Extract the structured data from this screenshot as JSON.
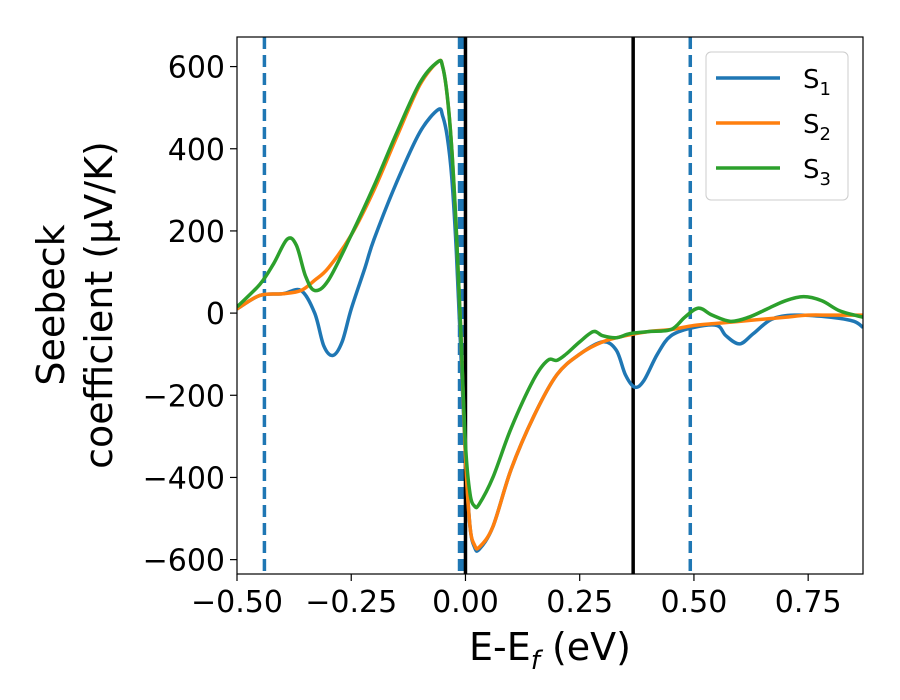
{
  "chart_data": {
    "type": "line",
    "title": "",
    "xlabel": "E-E",
    "xlabel_sub": "f",
    "xlabel_unit": " (eV)",
    "ylabel_line1": "Seebeck",
    "ylabel_line2": "coefficient  (μV/K)",
    "xlim": [
      -0.5,
      0.87
    ],
    "ylim": [
      -635,
      672
    ],
    "xticks": [
      -0.5,
      -0.25,
      0.0,
      0.25,
      0.5,
      0.75
    ],
    "xtick_labels": [
      "−0.50",
      "−0.25",
      "0.00",
      "0.25",
      "0.50",
      "0.75"
    ],
    "yticks": [
      -600,
      -400,
      -200,
      0,
      200,
      400,
      600
    ],
    "ytick_labels": [
      "−600",
      "−400",
      "−200",
      "0",
      "200",
      "400",
      "600"
    ],
    "grid": false,
    "legend_position": "top-right",
    "series": [
      {
        "name": "S",
        "sub": "1",
        "color": "#1f77b4",
        "x": [
          -0.5,
          -0.45,
          -0.4,
          -0.36,
          -0.33,
          -0.31,
          -0.29,
          -0.27,
          -0.25,
          -0.22,
          -0.2,
          -0.15,
          -0.1,
          -0.06,
          -0.05,
          -0.04,
          -0.03,
          -0.02,
          -0.01,
          0.0,
          0.01,
          0.02,
          0.03,
          0.06,
          0.1,
          0.15,
          0.2,
          0.25,
          0.3,
          0.33,
          0.35,
          0.37,
          0.39,
          0.42,
          0.45,
          0.5,
          0.55,
          0.57,
          0.6,
          0.63,
          0.67,
          0.72,
          0.8,
          0.85,
          0.87
        ],
        "y": [
          10,
          43,
          47,
          55,
          0,
          -80,
          -103,
          -70,
          10,
          110,
          180,
          320,
          440,
          495,
          480,
          430,
          330,
          150,
          -100,
          -350,
          -520,
          -570,
          -575,
          -520,
          -380,
          -250,
          -150,
          -100,
          -70,
          -90,
          -150,
          -180,
          -165,
          -100,
          -55,
          -35,
          -30,
          -55,
          -75,
          -50,
          -15,
          -5,
          -10,
          -20,
          -35
        ]
      },
      {
        "name": "S",
        "sub": "2",
        "color": "#ff7f0e",
        "x": [
          -0.5,
          -0.45,
          -0.4,
          -0.36,
          -0.33,
          -0.3,
          -0.25,
          -0.2,
          -0.15,
          -0.1,
          -0.06,
          -0.05,
          -0.04,
          -0.03,
          -0.02,
          -0.01,
          0.0,
          0.01,
          0.02,
          0.03,
          0.06,
          0.1,
          0.15,
          0.2,
          0.25,
          0.3,
          0.35,
          0.4,
          0.45,
          0.5,
          0.55,
          0.6,
          0.65,
          0.7,
          0.75,
          0.8,
          0.87
        ],
        "y": [
          10,
          43,
          47,
          55,
          80,
          110,
          190,
          300,
          430,
          555,
          612,
          600,
          530,
          400,
          200,
          -50,
          -350,
          -520,
          -565,
          -570,
          -520,
          -380,
          -250,
          -150,
          -100,
          -70,
          -55,
          -45,
          -40,
          -30,
          -25,
          -20,
          -15,
          -10,
          -5,
          -5,
          -5
        ]
      },
      {
        "name": "S",
        "sub": "3",
        "color": "#2ca02c",
        "x": [
          -0.5,
          -0.45,
          -0.42,
          -0.39,
          -0.37,
          -0.35,
          -0.33,
          -0.3,
          -0.25,
          -0.2,
          -0.15,
          -0.1,
          -0.06,
          -0.05,
          -0.04,
          -0.03,
          -0.02,
          -0.01,
          0.0,
          0.01,
          0.02,
          0.03,
          0.06,
          0.1,
          0.15,
          0.18,
          0.2,
          0.22,
          0.25,
          0.28,
          0.3,
          0.33,
          0.36,
          0.4,
          0.45,
          0.48,
          0.51,
          0.54,
          0.58,
          0.62,
          0.66,
          0.7,
          0.74,
          0.78,
          0.82,
          0.87
        ],
        "y": [
          15,
          70,
          120,
          180,
          165,
          90,
          55,
          80,
          190,
          310,
          440,
          560,
          612,
          600,
          530,
          400,
          200,
          -50,
          -320,
          -440,
          -470,
          -465,
          -400,
          -280,
          -160,
          -115,
          -115,
          -100,
          -70,
          -45,
          -55,
          -60,
          -50,
          -45,
          -40,
          -10,
          12,
          -5,
          -20,
          -10,
          10,
          30,
          40,
          30,
          5,
          -10
        ]
      }
    ],
    "vlines": [
      {
        "x": -0.44,
        "color": "#1f77b4",
        "style": "dashed"
      },
      {
        "x": -0.013,
        "color": "#1f77b4",
        "style": "dashed"
      },
      {
        "x": -0.007,
        "color": "#1f77b4",
        "style": "dashed"
      },
      {
        "x": 0.0,
        "color": "#000000",
        "style": "solid"
      },
      {
        "x": 0.367,
        "color": "#000000",
        "style": "solid"
      },
      {
        "x": 0.492,
        "color": "#1f77b4",
        "style": "dashed"
      }
    ]
  }
}
